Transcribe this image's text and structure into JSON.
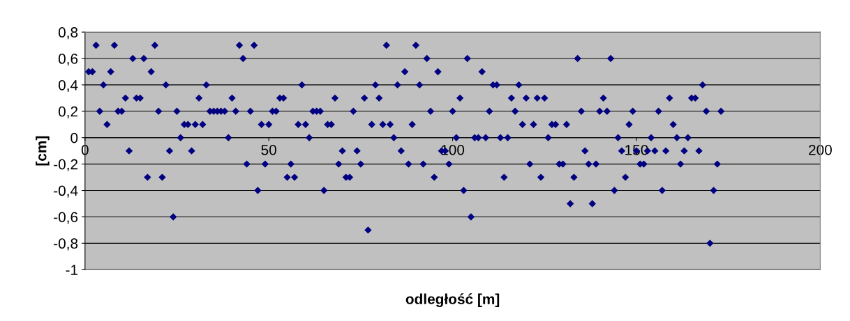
{
  "chart_data": {
    "type": "scatter",
    "xlabel": "odległość [m]",
    "ylabel": "[cm]",
    "x": [
      1,
      2,
      3,
      4,
      5,
      6,
      7,
      8,
      9,
      10,
      11,
      12,
      13,
      14,
      15,
      16,
      17,
      18,
      19,
      20,
      21,
      22,
      23,
      24,
      25,
      26,
      27,
      28,
      29,
      30,
      31,
      32,
      33,
      34,
      35,
      36,
      37,
      38,
      39,
      40,
      41,
      42,
      43,
      44,
      45,
      46,
      47,
      48,
      49,
      50,
      51,
      52,
      53,
      54,
      55,
      56,
      57,
      58,
      59,
      60,
      61,
      62,
      63,
      64,
      65,
      66,
      67,
      68,
      69,
      70,
      71,
      72,
      73,
      74,
      75,
      76,
      77,
      78,
      79,
      80,
      81,
      82,
      83,
      84,
      85,
      86,
      87,
      88,
      89,
      90,
      91,
      92,
      93,
      94,
      95,
      96,
      97,
      98,
      99,
      100,
      101,
      102,
      103,
      104,
      105,
      106,
      107,
      108,
      109,
      110,
      111,
      112,
      113,
      114,
      115,
      116,
      117,
      118,
      119,
      120,
      121,
      122,
      123,
      124,
      125,
      126,
      127,
      128,
      129,
      130,
      131,
      132,
      133,
      134,
      135,
      136,
      137,
      138,
      139,
      140,
      141,
      142,
      143,
      144,
      145,
      146,
      147,
      148,
      149,
      150,
      151,
      152,
      153,
      154,
      155,
      156,
      157,
      158,
      159,
      160,
      161,
      162,
      163,
      164,
      165,
      166,
      167,
      168,
      169,
      170,
      171,
      172,
      173
    ],
    "series": [
      {
        "color": "#000080",
        "values": [
          0.5,
          0.5,
          0.7,
          0.2,
          0.4,
          0.1,
          0.5,
          0.7,
          0.2,
          0.2,
          0.3,
          -0.1,
          0.6,
          0.3,
          0.3,
          0.6,
          -0.3,
          0.5,
          0.7,
          0.2,
          -0.3,
          0.4,
          -0.1,
          -0.6,
          0.2,
          0.0,
          0.1,
          0.1,
          -0.1,
          0.1,
          0.3,
          0.1,
          0.4,
          0.2,
          0.2,
          0.2,
          0.2,
          0.2,
          0.0,
          0.3,
          0.2,
          0.7,
          0.6,
          -0.2,
          0.2,
          0.7,
          -0.4,
          0.1,
          -0.2,
          0.1,
          0.2,
          0.2,
          0.3,
          0.3,
          -0.3,
          -0.2,
          -0.3,
          0.1,
          0.4,
          0.1,
          0.0,
          0.2,
          0.2,
          0.2,
          -0.4,
          0.1,
          0.1,
          0.3,
          -0.2,
          -0.1,
          -0.3,
          -0.3,
          0.2,
          -0.1,
          -0.2,
          0.3,
          -0.7,
          0.1,
          0.4,
          0.3,
          0.1,
          0.7,
          0.1,
          0.0,
          0.4,
          -0.1,
          0.5,
          -0.2,
          0.1,
          0.7,
          0.4,
          -0.2,
          0.6,
          0.2,
          -0.3,
          0.5,
          -0.1,
          -0.1,
          -0.2,
          0.2,
          0.0,
          0.3,
          -0.4,
          0.6,
          -0.6,
          0.0,
          0.0,
          0.5,
          0.0,
          0.2,
          0.4,
          0.4,
          0.0,
          -0.3,
          0.0,
          0.3,
          0.2,
          0.4,
          0.1,
          0.3,
          -0.2,
          0.1,
          0.3,
          -0.3,
          0.3,
          0.0,
          0.1,
          0.1,
          -0.2,
          -0.2,
          0.1,
          -0.5,
          -0.3,
          0.6,
          0.2,
          -0.1,
          -0.2,
          -0.5,
          -0.2,
          0.2,
          0.3,
          0.2,
          0.6,
          -0.4,
          0.0,
          -0.1,
          -0.3,
          0.1,
          0.2,
          -0.1,
          -0.2,
          -0.2,
          -0.1,
          0.0,
          -0.1,
          0.2,
          -0.4,
          -0.1,
          0.3,
          0.1,
          0.0,
          -0.2,
          -0.1,
          0.0,
          0.3,
          0.3,
          -0.1,
          0.4,
          0.2,
          -0.8,
          -0.4,
          -0.2,
          0.2
        ]
      }
    ],
    "xlim": [
      0,
      200
    ],
    "xticks": [
      0,
      50,
      100,
      150,
      200
    ],
    "ylim": [
      -1,
      0.8
    ],
    "yticks": [
      {
        "value": -1,
        "label": "-1"
      },
      {
        "value": -0.8,
        "label": "-0,8"
      },
      {
        "value": -0.6,
        "label": "-0,6"
      },
      {
        "value": -0.4,
        "label": "-0,4"
      },
      {
        "value": -0.2,
        "label": "-0,2"
      },
      {
        "value": 0,
        "label": "0"
      },
      {
        "value": 0.2,
        "label": "0,2"
      },
      {
        "value": 0.4,
        "label": "0,4"
      },
      {
        "value": 0.6,
        "label": "0,6"
      },
      {
        "value": 0.8,
        "label": "0,8"
      }
    ],
    "grid": "y",
    "marker": "diamond",
    "legend": false
  }
}
